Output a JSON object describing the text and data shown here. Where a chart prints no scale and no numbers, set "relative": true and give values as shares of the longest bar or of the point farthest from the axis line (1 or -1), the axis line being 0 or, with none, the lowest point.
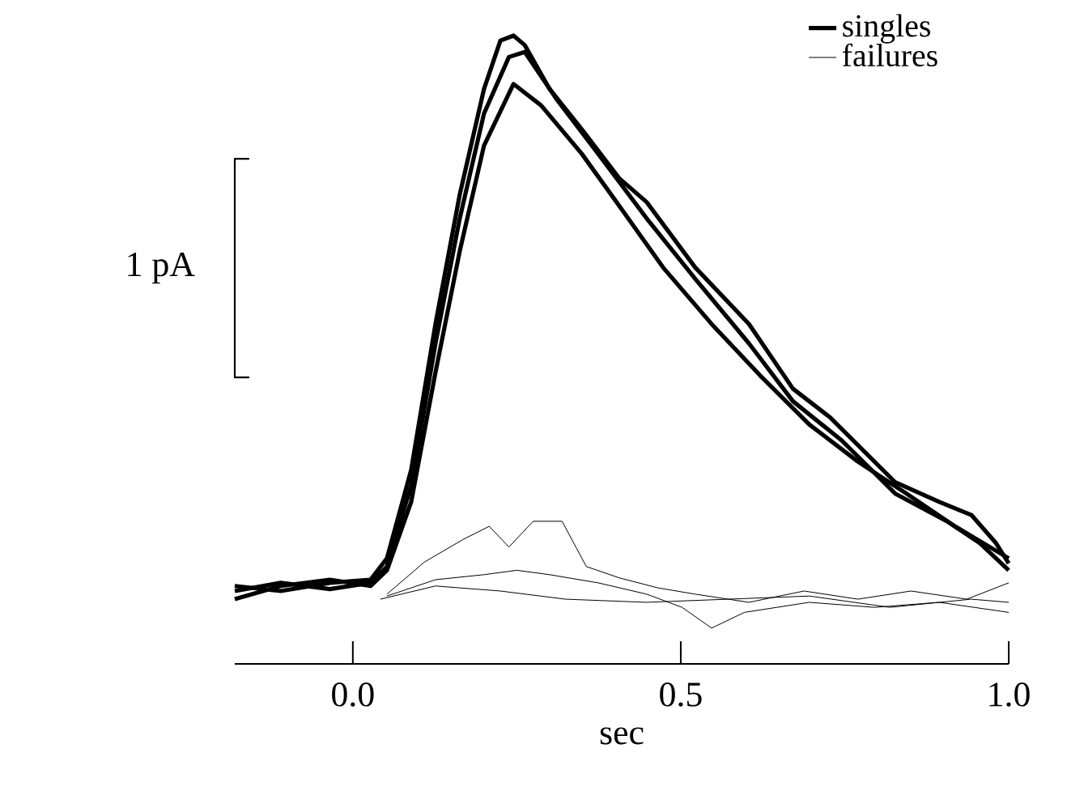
{
  "chart_data": {
    "type": "line",
    "relative": true,
    "xlabel": "sec",
    "xlim": [
      -0.18,
      1.0
    ],
    "xticks": [
      {
        "value": 0,
        "label": "0.0"
      },
      0.5,
      {
        "value": 1,
        "label": "1.0"
      }
    ],
    "legend": "top right",
    "annotations": [
      {
        "text": "1 pA",
        "x": -0.18,
        "y": 0.63
      }
    ],
    "series": [
      {
        "color": "#000000",
        "x": [
          -0.158,
          -0.18,
          -0.18,
          -0.158
        ],
        "values": [
          0.804,
          0.804,
          0.456,
          0.456
        ]
      },
      {
        "name": "singles",
        "color": "#000000",
        "x": [
          -0.18,
          -0.11,
          -0.035,
          0.027,
          0.052,
          0.089,
          0.126,
          0.163,
          0.2,
          0.225,
          0.245,
          0.262,
          0.3,
          0.349,
          0.406,
          0.448,
          0.522,
          0.604,
          0.671,
          0.728,
          0.827,
          0.894,
          0.943,
          0.98,
          1.0
        ],
        "values": [
          0.124,
          0.116,
          0.129,
          0.134,
          0.168,
          0.309,
          0.541,
          0.747,
          0.915,
          0.992,
          1.0,
          0.985,
          0.915,
          0.851,
          0.773,
          0.735,
          0.631,
          0.541,
          0.438,
          0.392,
          0.289,
          0.258,
          0.237,
          0.193,
          0.16
        ]
      },
      {
        "color": "#000000",
        "x": [
          -0.18,
          -0.11,
          -0.035,
          0.027,
          0.052,
          0.089,
          0.126,
          0.163,
          0.2,
          0.238,
          0.262,
          0.312,
          0.374,
          0.448,
          0.522,
          0.604,
          0.671,
          0.745,
          0.827,
          0.906,
          0.955,
          1.0
        ],
        "values": [
          0.116,
          0.129,
          0.119,
          0.129,
          0.155,
          0.284,
          0.51,
          0.709,
          0.876,
          0.966,
          0.974,
          0.897,
          0.812,
          0.709,
          0.613,
          0.51,
          0.418,
          0.356,
          0.271,
          0.227,
          0.193,
          0.149
        ]
      },
      {
        "color": "#000000",
        "x": [
          -0.18,
          -0.11,
          -0.035,
          0.027,
          0.052,
          0.089,
          0.126,
          0.163,
          0.2,
          0.245,
          0.287,
          0.349,
          0.411,
          0.473,
          0.547,
          0.621,
          0.696,
          0.77,
          0.844,
          0.918,
          1.0
        ],
        "values": [
          0.103,
          0.124,
          0.134,
          0.124,
          0.149,
          0.258,
          0.464,
          0.657,
          0.825,
          0.923,
          0.889,
          0.812,
          0.722,
          0.631,
          0.541,
          0.459,
          0.381,
          0.322,
          0.271,
          0.219,
          0.168
        ]
      },
      {
        "name": "failures",
        "color": "#000000",
        "x": [
          0.052,
          0.109,
          0.168,
          0.208,
          0.238,
          0.275,
          0.319,
          0.356,
          0.406,
          0.465,
          0.522,
          0.604,
          0.688,
          0.77,
          0.851,
          0.936,
          1.0
        ],
        "values": [
          0.111,
          0.162,
          0.198,
          0.219,
          0.186,
          0.227,
          0.227,
          0.155,
          0.137,
          0.121,
          0.111,
          0.098,
          0.116,
          0.103,
          0.116,
          0.103,
          0.129
        ]
      },
      {
        "color": "#000000",
        "x": [
          0.052,
          0.126,
          0.2,
          0.25,
          0.3,
          0.374,
          0.448,
          0.502,
          0.547,
          0.597,
          0.696,
          0.795,
          0.894,
          1.0
        ],
        "values": [
          0.108,
          0.134,
          0.142,
          0.149,
          0.142,
          0.129,
          0.111,
          0.09,
          0.057,
          0.082,
          0.098,
          0.09,
          0.098,
          0.082
        ]
      },
      {
        "color": "#000000",
        "x": [
          0.042,
          0.126,
          0.225,
          0.324,
          0.448,
          0.572,
          0.696,
          0.819,
          0.943,
          1.0
        ],
        "values": [
          0.103,
          0.124,
          0.116,
          0.103,
          0.098,
          0.103,
          0.108,
          0.09,
          0.103,
          0.098
        ]
      }
    ]
  }
}
